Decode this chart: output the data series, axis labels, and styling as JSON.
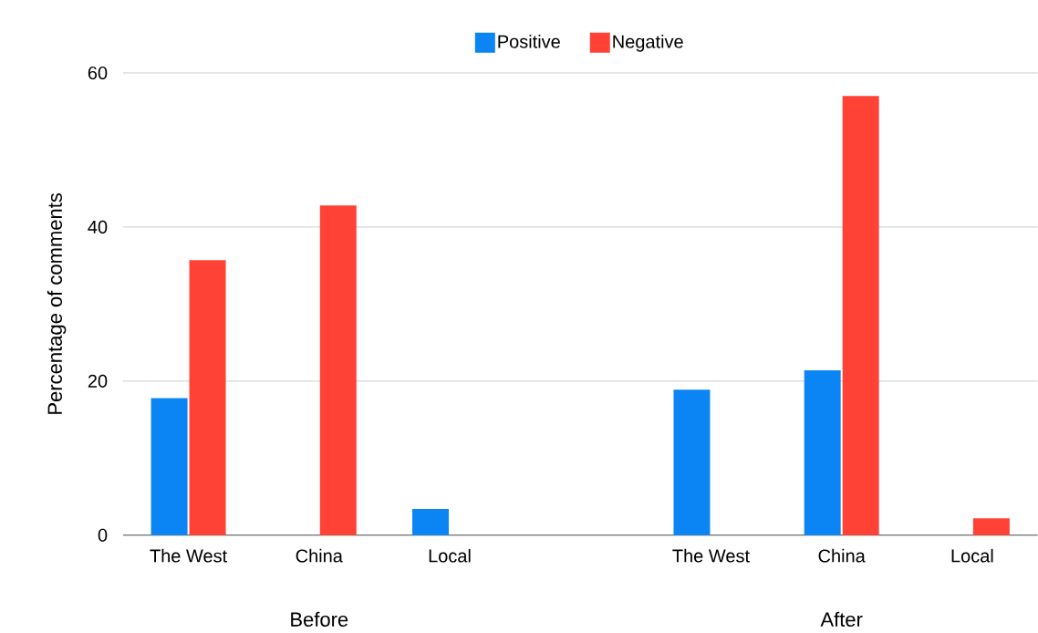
{
  "chart_data": {
    "type": "bar",
    "ylabel": "Percentage of comments",
    "categories": [
      "The West",
      "China",
      "Local",
      null,
      "The West",
      "China",
      "Local"
    ],
    "series": [
      {
        "name": "Positive",
        "color": "#0b84f4",
        "values": [
          17.8,
          null,
          3.4,
          null,
          18.9,
          21.4,
          null
        ]
      },
      {
        "name": "Negative",
        "color": "#ff4136",
        "values": [
          35.7,
          42.8,
          null,
          null,
          null,
          57.0,
          2.2
        ]
      }
    ],
    "annotations": [
      "Before",
      "After"
    ],
    "ylim": [
      0,
      60
    ],
    "yticks": [
      0,
      20,
      40,
      60
    ],
    "grid": "y",
    "legend": "top"
  }
}
